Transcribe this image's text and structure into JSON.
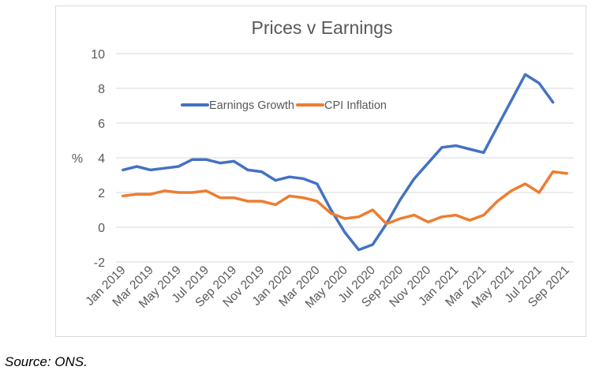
{
  "chart_data": {
    "type": "line",
    "title": "Prices v Earnings",
    "ylabel": "%",
    "xlabel": "",
    "ylim": [
      -2,
      10
    ],
    "yticks": [
      "10",
      "8",
      "6",
      "4",
      "2",
      "0",
      "-2"
    ],
    "ytick_values": [
      10,
      8,
      6,
      4,
      2,
      0,
      -2
    ],
    "grid": true,
    "legend_placement": "upper-center",
    "x": [
      "Jan 2019",
      "Feb 2019",
      "Mar 2019",
      "Apr 2019",
      "May 2019",
      "Jun 2019",
      "Jul 2019",
      "Aug 2019",
      "Sep 2019",
      "Oct 2019",
      "Nov 2019",
      "Dec 2019",
      "Jan 2020",
      "Feb 2020",
      "Mar 2020",
      "Apr 2020",
      "May 2020",
      "Jun 2020",
      "Jul 2020",
      "Aug 2020",
      "Sep 2020",
      "Oct 2020",
      "Nov 2020",
      "Dec 2020",
      "Jan 2021",
      "Feb 2021",
      "Mar 2021",
      "Apr 2021",
      "May 2021",
      "Jun 2021",
      "Jul 2021",
      "Aug 2021",
      "Sep 2021"
    ],
    "xtick_labels": [
      "Jan 2019",
      "Mar 2019",
      "May 2019",
      "Jul 2019",
      "Sep 2019",
      "Nov 2019",
      "Jan 2020",
      "Mar 2020",
      "May 2020",
      "Jul 2020",
      "Sep 2020",
      "Nov 2020",
      "Jan 2021",
      "Mar 2021",
      "May 2021",
      "Jul 2021",
      "Sep 2021"
    ],
    "series": [
      {
        "name": "Earnings Growth",
        "color": "#4472C4",
        "values": [
          3.3,
          3.5,
          3.3,
          3.4,
          3.5,
          3.9,
          3.9,
          3.7,
          3.8,
          3.3,
          3.2,
          2.7,
          2.9,
          2.8,
          2.5,
          1.0,
          -0.3,
          -1.3,
          -1.0,
          0.2,
          1.6,
          2.8,
          3.7,
          4.6,
          4.7,
          4.5,
          4.3,
          5.8,
          7.3,
          8.8,
          8.3,
          7.2,
          null
        ]
      },
      {
        "name": "CPI Inflation",
        "color": "#ED7D31",
        "values": [
          1.8,
          1.9,
          1.9,
          2.1,
          2.0,
          2.0,
          2.1,
          1.7,
          1.7,
          1.5,
          1.5,
          1.3,
          1.8,
          1.7,
          1.5,
          0.8,
          0.5,
          0.6,
          1.0,
          0.2,
          0.5,
          0.7,
          0.3,
          0.6,
          0.7,
          0.4,
          0.7,
          1.5,
          2.1,
          2.5,
          2.0,
          3.2,
          3.1
        ]
      }
    ]
  },
  "source": "Source: ONS."
}
